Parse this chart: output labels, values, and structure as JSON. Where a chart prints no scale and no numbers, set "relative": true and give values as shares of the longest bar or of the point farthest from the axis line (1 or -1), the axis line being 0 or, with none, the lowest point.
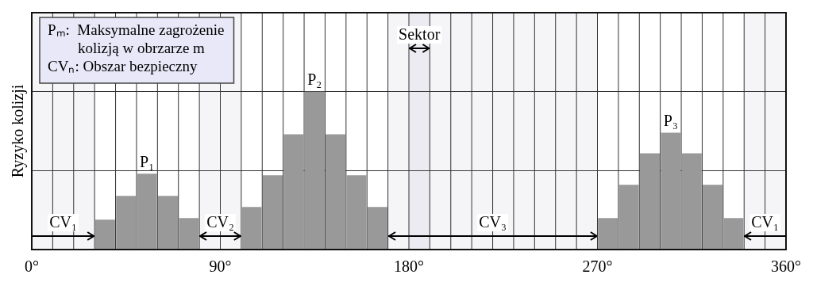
{
  "chart_data": {
    "type": "bar",
    "ylabel": "Ryzyko kolizji",
    "relative": true,
    "color": "#999999",
    "grid": true,
    "x": [
      35,
      45,
      55,
      65,
      75,
      105,
      115,
      125,
      135,
      145,
      155,
      165,
      275,
      285,
      295,
      305,
      315,
      325,
      335
    ],
    "values": [
      0.19,
      0.34,
      0.48,
      0.34,
      0.2,
      0.27,
      0.47,
      0.73,
      1,
      0.73,
      0.47,
      0.27,
      0.2,
      0.41,
      0.61,
      0.74,
      0.61,
      0.41,
      0.2
    ],
    "xlim": [
      0,
      360
    ],
    "xticks": [
      {
        "value": 0,
        "label": "0°"
      },
      {
        "value": 90,
        "label": "90°"
      },
      {
        "value": 180,
        "label": "180°"
      },
      {
        "value": 270,
        "label": "270°"
      },
      {
        "value": 360,
        "label": "360°"
      }
    ],
    "bands": [
      {
        "axis": "x",
        "from": 0,
        "to": 30,
        "label": "CV₁"
      },
      {
        "axis": "x",
        "from": 80,
        "to": 100,
        "label": "CV₂"
      },
      {
        "axis": "x",
        "from": 170,
        "to": 270,
        "label": "CV₃"
      },
      {
        "axis": "x",
        "from": 340,
        "to": 360,
        "label": "CV₁"
      },
      {
        "axis": "x",
        "from": 180,
        "to": 190,
        "label": "Sektor"
      }
    ],
    "annotations": [
      "Pₘ:  Maksymalne zagrożenie kolizją w obrzarze m",
      "CVₙ: Obszar bezpieczny",
      {
        "text": "P₁",
        "x": 55,
        "y": 0.48
      },
      {
        "text": "P₂",
        "x": 135,
        "y": 1
      },
      {
        "text": "P₃",
        "x": 305,
        "y": 0.74
      }
    ]
  }
}
